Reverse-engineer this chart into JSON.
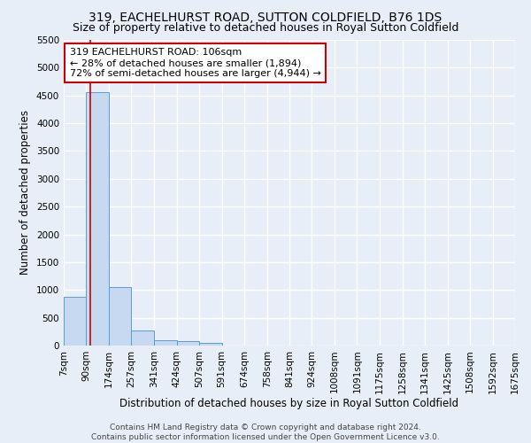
{
  "title": "319, EACHELHURST ROAD, SUTTON COLDFIELD, B76 1DS",
  "subtitle": "Size of property relative to detached houses in Royal Sutton Coldfield",
  "xlabel": "Distribution of detached houses by size in Royal Sutton Coldfield",
  "ylabel": "Number of detached properties",
  "footer_line1": "Contains HM Land Registry data © Crown copyright and database right 2024.",
  "footer_line2": "Contains public sector information licensed under the Open Government Licence v3.0.",
  "annotation_line1": "319 EACHELHURST ROAD: 106sqm",
  "annotation_line2": "← 28% of detached houses are smaller (1,894)",
  "annotation_line3": "72% of semi-detached houses are larger (4,944) →",
  "bar_edges": [
    7,
    90,
    174,
    257,
    341,
    424,
    507,
    591,
    674,
    758,
    841,
    924,
    1008,
    1091,
    1175,
    1258,
    1341,
    1425,
    1508,
    1592,
    1675
  ],
  "bar_heights": [
    880,
    4560,
    1060,
    275,
    95,
    85,
    50,
    0,
    0,
    0,
    0,
    0,
    0,
    0,
    0,
    0,
    0,
    0,
    0,
    0
  ],
  "bar_color": "#c6d9f1",
  "bar_edge_color": "#5b9bd5",
  "property_sqm": 106,
  "red_line_color": "#cc0000",
  "ylim": [
    0,
    5500
  ],
  "yticks": [
    0,
    500,
    1000,
    1500,
    2000,
    2500,
    3000,
    3500,
    4000,
    4500,
    5000,
    5500
  ],
  "background_color": "#e8eef8",
  "grid_color": "#ffffff",
  "annotation_box_color": "#cc0000",
  "title_fontsize": 10,
  "subtitle_fontsize": 9,
  "axis_label_fontsize": 8.5,
  "tick_fontsize": 7.5,
  "annotation_fontsize": 8,
  "footer_fontsize": 6.5
}
